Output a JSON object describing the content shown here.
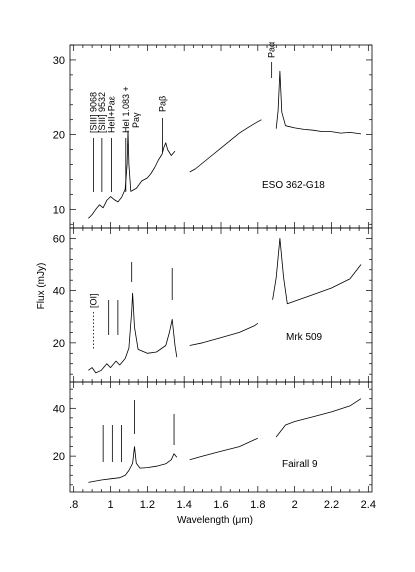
{
  "chart_data": {
    "type": "line",
    "xlabel": "Wavelength (μm)",
    "ylabel": "Flux (mJy)",
    "xlim": [
      0.78,
      2.42
    ],
    "x_ticks": [
      0.8,
      1.0,
      1.2,
      1.4,
      1.6,
      1.8,
      2.0,
      2.2,
      2.4
    ],
    "x_tick_labels": [
      ".8",
      "1",
      "1.2",
      "1.4",
      "1.6",
      "1.8",
      "2",
      "2.2",
      "2.4"
    ],
    "grid": false,
    "panels": [
      {
        "name": "ESO 362-G18",
        "ylim": [
          7.5,
          32
        ],
        "y_ticks": [
          10,
          20,
          30
        ],
        "series": [
          {
            "values": [
              [
                0.88,
                8.8
              ],
              [
                0.9,
                9.3
              ],
              [
                0.92,
                10.0
              ],
              [
                0.94,
                10.6
              ],
              [
                0.96,
                10.2
              ],
              [
                0.98,
                11.2
              ],
              [
                1.0,
                11.7
              ],
              [
                1.02,
                11.3
              ],
              [
                1.04,
                11.0
              ],
              [
                1.06,
                11.6
              ],
              [
                1.08,
                12.7
              ],
              [
                1.09,
                16.0
              ],
              [
                1.095,
                20.5
              ],
              [
                1.1,
                16.0
              ],
              [
                1.11,
                12.4
              ],
              [
                1.14,
                12.8
              ],
              [
                1.17,
                13.8
              ],
              [
                1.2,
                14.2
              ],
              [
                1.22,
                14.8
              ],
              [
                1.24,
                15.6
              ],
              [
                1.26,
                16.6
              ],
              [
                1.28,
                17.4
              ],
              [
                1.29,
                18.3
              ],
              [
                1.3,
                18.9
              ],
              [
                1.31,
                18.0
              ],
              [
                1.33,
                17.2
              ],
              [
                1.35,
                17.8
              ]
            ]
          },
          {
            "values": [
              [
                1.43,
                15.0
              ],
              [
                1.46,
                15.4
              ],
              [
                1.5,
                16.2
              ],
              [
                1.55,
                17.2
              ],
              [
                1.6,
                18.2
              ],
              [
                1.65,
                19.2
              ],
              [
                1.7,
                20.2
              ],
              [
                1.75,
                21.0
              ],
              [
                1.79,
                21.6
              ],
              [
                1.82,
                22.0
              ]
            ]
          },
          {
            "values": [
              [
                1.9,
                20.8
              ],
              [
                1.91,
                23.2
              ],
              [
                1.92,
                28.5
              ],
              [
                1.93,
                23.0
              ],
              [
                1.95,
                21.2
              ],
              [
                2.0,
                20.9
              ],
              [
                2.05,
                20.7
              ],
              [
                2.1,
                20.6
              ],
              [
                2.15,
                20.4
              ],
              [
                2.2,
                20.4
              ],
              [
                2.25,
                20.2
              ],
              [
                2.3,
                20.3
              ],
              [
                2.36,
                20.1
              ]
            ]
          }
        ],
        "lines": [
          {
            "label": "[SIII] 9068",
            "x": 0.907
          },
          {
            "label": "[SIII] 9532",
            "x": 0.953
          },
          {
            "label": "HeII+Paε",
            "x": 1.005
          },
          {
            "label": "HeI 1.083 +",
            "label2": "Paγ",
            "x": 1.083
          },
          {
            "label": "Paβ",
            "x": 1.282
          },
          {
            "label": "Paα",
            "x": 1.875
          }
        ]
      },
      {
        "name": "Mrk 509",
        "ylim": [
          5,
          64
        ],
        "y_ticks": [
          20,
          40,
          60
        ],
        "series": [
          {
            "values": [
              [
                0.88,
                9.5
              ],
              [
                0.9,
                10.5
              ],
              [
                0.92,
                8.5
              ],
              [
                0.95,
                9.5
              ],
              [
                0.98,
                12.0
              ],
              [
                1.0,
                10.5
              ],
              [
                1.03,
                13.0
              ],
              [
                1.05,
                11.5
              ],
              [
                1.08,
                14.0
              ],
              [
                1.1,
                18.0
              ],
              [
                1.115,
                32.0
              ],
              [
                1.12,
                39.0
              ],
              [
                1.13,
                26.0
              ],
              [
                1.15,
                17.5
              ],
              [
                1.2,
                16.0
              ],
              [
                1.25,
                16.5
              ],
              [
                1.3,
                19.0
              ],
              [
                1.32,
                24.0
              ],
              [
                1.335,
                29.0
              ],
              [
                1.35,
                19.0
              ],
              [
                1.36,
                14.5
              ]
            ]
          },
          {
            "values": [
              [
                1.43,
                19.0
              ],
              [
                1.5,
                20.0
              ],
              [
                1.6,
                22.0
              ],
              [
                1.7,
                24.0
              ],
              [
                1.78,
                26.5
              ],
              [
                1.8,
                27.5
              ]
            ]
          },
          {
            "values": [
              [
                1.88,
                36.5
              ],
              [
                1.9,
                45.0
              ],
              [
                1.92,
                60.0
              ],
              [
                1.94,
                45.0
              ],
              [
                1.96,
                35.0
              ],
              [
                2.0,
                36.0
              ],
              [
                2.1,
                38.5
              ],
              [
                2.2,
                41.0
              ],
              [
                2.3,
                44.5
              ],
              [
                2.36,
                50.0
              ]
            ]
          }
        ],
        "lines": [
          {
            "label": "[OI]",
            "x": 0.907,
            "dotted": true
          },
          {
            "label": "",
            "x": 0.99
          },
          {
            "label": "",
            "x": 1.04
          },
          {
            "label": "",
            "x": 1.115
          },
          {
            "label": "",
            "x": 1.335
          }
        ]
      },
      {
        "name": "Fairall 9",
        "ylim": [
          5,
          51
        ],
        "y_ticks": [
          20,
          40
        ],
        "series": [
          {
            "values": [
              [
                0.88,
                9.0
              ],
              [
                0.95,
                10.0
              ],
              [
                1.0,
                10.5
              ],
              [
                1.05,
                11.0
              ],
              [
                1.08,
                12.0
              ],
              [
                1.1,
                14.0
              ],
              [
                1.12,
                17.0
              ],
              [
                1.13,
                24.0
              ],
              [
                1.14,
                17.0
              ],
              [
                1.16,
                15.0
              ],
              [
                1.2,
                15.2
              ],
              [
                1.25,
                15.8
              ],
              [
                1.3,
                16.8
              ],
              [
                1.33,
                18.5
              ],
              [
                1.345,
                21.0
              ],
              [
                1.36,
                19.5
              ]
            ]
          },
          {
            "values": [
              [
                1.43,
                18.5
              ],
              [
                1.5,
                20.0
              ],
              [
                1.6,
                22.0
              ],
              [
                1.7,
                24.0
              ],
              [
                1.8,
                27.5
              ]
            ]
          },
          {
            "values": [
              [
                1.9,
                28.0
              ],
              [
                1.95,
                33.0
              ],
              [
                2.0,
                34.5
              ],
              [
                2.1,
                36.5
              ],
              [
                2.2,
                38.5
              ],
              [
                2.3,
                41.0
              ],
              [
                2.36,
                44.0
              ]
            ]
          }
        ],
        "lines": [
          {
            "label": "",
            "x": 0.96
          },
          {
            "label": "",
            "x": 1.01
          },
          {
            "label": "",
            "x": 1.06
          },
          {
            "label": "",
            "x": 1.13
          },
          {
            "label": "",
            "x": 1.345
          }
        ]
      }
    ]
  }
}
